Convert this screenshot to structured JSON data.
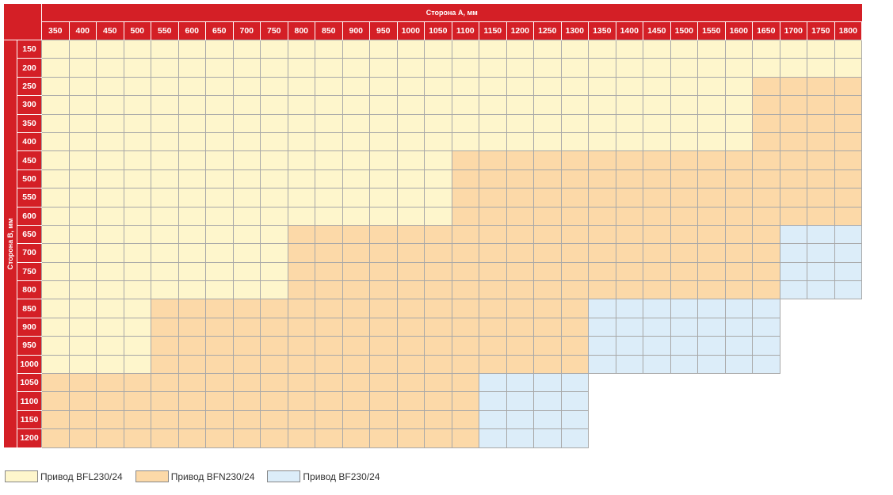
{
  "chart_data": {
    "type": "heatmap",
    "title_x": "Сторона А, мм",
    "title_y": "Сторона В, мм",
    "x": [
      350,
      400,
      450,
      500,
      550,
      600,
      650,
      700,
      750,
      800,
      850,
      900,
      950,
      1000,
      1050,
      1100,
      1150,
      1200,
      1250,
      1300,
      1350,
      1400,
      1450,
      1500,
      1550,
      1600,
      1650,
      1700,
      1750,
      1800
    ],
    "y": [
      150,
      200,
      250,
      300,
      350,
      400,
      450,
      500,
      550,
      600,
      650,
      700,
      750,
      800,
      850,
      900,
      950,
      1000,
      1050,
      1100,
      1150,
      1200
    ],
    "legend": [
      {
        "key": "BFL",
        "label": "Привод BFL230/24",
        "color": "#fef6cc"
      },
      {
        "key": "BFN",
        "label": "Привод BFN230/24",
        "color": "#fcd9a8"
      },
      {
        "key": "BF",
        "label": "Привод BF230/24",
        "color": "#dcedf9"
      }
    ],
    "rows": [
      {
        "y": 150,
        "segments": [
          [
            "BFL",
            30
          ]
        ]
      },
      {
        "y": 200,
        "segments": [
          [
            "BFL",
            30
          ]
        ]
      },
      {
        "y": 250,
        "segments": [
          [
            "BFL",
            26
          ],
          [
            "BFN",
            4
          ]
        ]
      },
      {
        "y": 300,
        "segments": [
          [
            "BFL",
            26
          ],
          [
            "BFN",
            4
          ]
        ]
      },
      {
        "y": 350,
        "segments": [
          [
            "BFL",
            26
          ],
          [
            "BFN",
            4
          ]
        ]
      },
      {
        "y": 400,
        "segments": [
          [
            "BFL",
            26
          ],
          [
            "BFN",
            4
          ]
        ]
      },
      {
        "y": 450,
        "segments": [
          [
            "BFL",
            15
          ],
          [
            "BFN",
            15
          ]
        ]
      },
      {
        "y": 500,
        "segments": [
          [
            "BFL",
            15
          ],
          [
            "BFN",
            15
          ]
        ]
      },
      {
        "y": 550,
        "segments": [
          [
            "BFL",
            15
          ],
          [
            "BFN",
            15
          ]
        ]
      },
      {
        "y": 600,
        "segments": [
          [
            "BFL",
            15
          ],
          [
            "BFN",
            15
          ]
        ]
      },
      {
        "y": 650,
        "segments": [
          [
            "BFL",
            9
          ],
          [
            "BFN",
            18
          ],
          [
            "BF",
            3
          ]
        ]
      },
      {
        "y": 700,
        "segments": [
          [
            "BFL",
            9
          ],
          [
            "BFN",
            18
          ],
          [
            "BF",
            3
          ]
        ]
      },
      {
        "y": 750,
        "segments": [
          [
            "BFL",
            9
          ],
          [
            "BFN",
            18
          ],
          [
            "BF",
            3
          ]
        ]
      },
      {
        "y": 800,
        "segments": [
          [
            "BFL",
            9
          ],
          [
            "BFN",
            18
          ],
          [
            "BF",
            3
          ]
        ]
      },
      {
        "y": 850,
        "segments": [
          [
            "BFL",
            4
          ],
          [
            "BFN",
            16
          ],
          [
            "BF",
            7
          ],
          [
            "none",
            3
          ]
        ]
      },
      {
        "y": 900,
        "segments": [
          [
            "BFL",
            4
          ],
          [
            "BFN",
            16
          ],
          [
            "BF",
            7
          ],
          [
            "none",
            3
          ]
        ]
      },
      {
        "y": 950,
        "segments": [
          [
            "BFL",
            4
          ],
          [
            "BFN",
            16
          ],
          [
            "BF",
            7
          ],
          [
            "none",
            3
          ]
        ]
      },
      {
        "y": 1000,
        "segments": [
          [
            "BFL",
            4
          ],
          [
            "BFN",
            16
          ],
          [
            "BF",
            7
          ],
          [
            "none",
            3
          ]
        ]
      },
      {
        "y": 1050,
        "segments": [
          [
            "BFN",
            16
          ],
          [
            "BF",
            4
          ],
          [
            "none",
            10
          ]
        ]
      },
      {
        "y": 1100,
        "segments": [
          [
            "BFN",
            16
          ],
          [
            "BF",
            4
          ],
          [
            "none",
            10
          ]
        ]
      },
      {
        "y": 1150,
        "segments": [
          [
            "BFN",
            16
          ],
          [
            "BF",
            4
          ],
          [
            "none",
            10
          ]
        ]
      },
      {
        "y": 1200,
        "segments": [
          [
            "BFN",
            16
          ],
          [
            "BF",
            4
          ],
          [
            "none",
            10
          ]
        ]
      }
    ]
  }
}
